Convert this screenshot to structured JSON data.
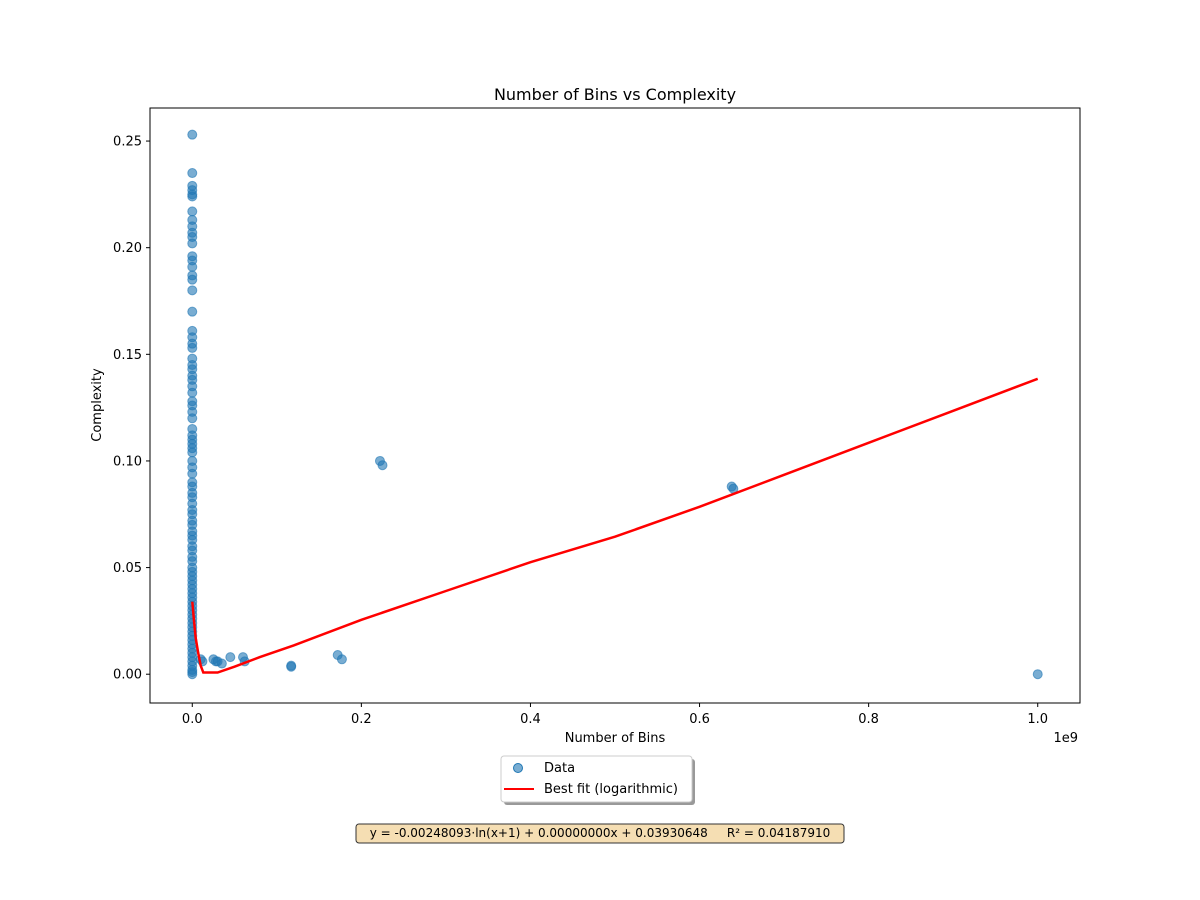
{
  "chart_data": {
    "type": "scatter",
    "title": "Number of Bins vs Complexity",
    "xlabel": "Number of Bins",
    "ylabel": "Complexity",
    "x_offset_label": "1e9",
    "x_scale": 1000000000,
    "xlim": [
      -0.05,
      1.05
    ],
    "ylim": [
      -0.0135,
      0.2655
    ],
    "x_ticks": [
      {
        "value": 0.0,
        "label": "0.0"
      },
      {
        "value": 0.2,
        "label": "0.2"
      },
      {
        "value": 0.4,
        "label": "0.4"
      },
      {
        "value": 0.6,
        "label": "0.6"
      },
      {
        "value": 0.8,
        "label": "0.8"
      },
      {
        "value": 1.0,
        "label": "1.0"
      }
    ],
    "y_ticks": [
      {
        "value": 0.0,
        "label": "0.00"
      },
      {
        "value": 0.05,
        "label": "0.05"
      },
      {
        "value": 0.1,
        "label": "0.10"
      },
      {
        "value": 0.15,
        "label": "0.15"
      },
      {
        "value": 0.2,
        "label": "0.20"
      },
      {
        "value": 0.25,
        "label": "0.25"
      }
    ],
    "grid": false,
    "legend_position": "bottom-center",
    "series": [
      {
        "name": "Data",
        "kind": "scatter",
        "color": "#1f77b4",
        "points": [
          [
            0.0,
            0.253
          ],
          [
            0.0,
            0.235
          ],
          [
            0.0,
            0.229
          ],
          [
            0.0,
            0.227
          ],
          [
            0.0,
            0.225
          ],
          [
            0.0,
            0.224
          ],
          [
            0.0,
            0.217
          ],
          [
            0.0,
            0.213
          ],
          [
            0.0,
            0.21
          ],
          [
            0.0,
            0.207
          ],
          [
            0.0,
            0.205
          ],
          [
            0.0,
            0.202
          ],
          [
            0.0,
            0.196
          ],
          [
            0.0,
            0.194
          ],
          [
            0.0,
            0.191
          ],
          [
            0.0,
            0.187
          ],
          [
            0.0,
            0.185
          ],
          [
            0.0,
            0.18
          ],
          [
            0.0,
            0.17
          ],
          [
            0.0,
            0.161
          ],
          [
            0.0,
            0.158
          ],
          [
            0.0,
            0.155
          ],
          [
            0.0,
            0.153
          ],
          [
            0.0,
            0.148
          ],
          [
            0.0,
            0.145
          ],
          [
            0.0,
            0.143
          ],
          [
            0.0,
            0.14
          ],
          [
            0.0,
            0.138
          ],
          [
            0.0,
            0.135
          ],
          [
            0.0,
            0.132
          ],
          [
            0.0,
            0.128
          ],
          [
            0.0,
            0.126
          ],
          [
            0.0,
            0.123
          ],
          [
            0.0,
            0.12
          ],
          [
            0.0,
            0.115
          ],
          [
            0.0,
            0.112
          ],
          [
            0.0,
            0.11
          ],
          [
            0.0,
            0.108
          ],
          [
            0.0,
            0.106
          ],
          [
            0.0,
            0.104
          ],
          [
            0.0,
            0.1
          ],
          [
            0.0,
            0.097
          ],
          [
            0.0,
            0.094
          ],
          [
            0.0,
            0.09
          ],
          [
            0.0,
            0.088
          ],
          [
            0.0,
            0.085
          ],
          [
            0.0,
            0.083
          ],
          [
            0.0,
            0.08
          ],
          [
            0.0,
            0.077
          ],
          [
            0.0,
            0.075
          ],
          [
            0.0,
            0.072
          ],
          [
            0.0,
            0.07
          ],
          [
            0.0,
            0.067
          ],
          [
            0.0,
            0.065
          ],
          [
            0.0,
            0.063
          ],
          [
            0.0,
            0.06
          ],
          [
            0.0,
            0.058
          ],
          [
            0.0,
            0.055
          ],
          [
            0.0,
            0.053
          ],
          [
            0.0,
            0.05
          ],
          [
            0.0,
            0.048
          ],
          [
            0.0,
            0.046
          ],
          [
            0.0,
            0.044
          ],
          [
            0.0,
            0.042
          ],
          [
            0.0,
            0.04
          ],
          [
            0.0,
            0.038
          ],
          [
            0.0,
            0.036
          ],
          [
            0.0,
            0.034
          ],
          [
            0.0,
            0.032
          ],
          [
            0.0,
            0.03
          ],
          [
            0.0,
            0.028
          ],
          [
            0.0,
            0.026
          ],
          [
            0.0,
            0.024
          ],
          [
            0.0,
            0.022
          ],
          [
            0.0,
            0.02
          ],
          [
            0.0,
            0.018
          ],
          [
            0.0,
            0.016
          ],
          [
            0.0,
            0.014
          ],
          [
            0.0,
            0.012
          ],
          [
            0.0,
            0.01
          ],
          [
            0.0,
            0.008
          ],
          [
            0.0,
            0.006
          ],
          [
            0.0,
            0.004
          ],
          [
            0.0,
            0.002
          ],
          [
            0.0,
            0.001
          ],
          [
            0.0,
            0.0
          ],
          [
            0.01,
            0.007
          ],
          [
            0.012,
            0.006
          ],
          [
            0.025,
            0.007
          ],
          [
            0.028,
            0.006
          ],
          [
            0.03,
            0.006
          ],
          [
            0.035,
            0.005
          ],
          [
            0.045,
            0.008
          ],
          [
            0.06,
            0.008
          ],
          [
            0.062,
            0.006
          ],
          [
            0.117,
            0.004
          ],
          [
            0.117,
            0.0035
          ],
          [
            0.172,
            0.009
          ],
          [
            0.177,
            0.007
          ],
          [
            0.222,
            0.1
          ],
          [
            0.225,
            0.098
          ],
          [
            0.638,
            0.088
          ],
          [
            0.64,
            0.087
          ],
          [
            1.0,
            0.0
          ]
        ]
      },
      {
        "name": "Best fit (logarithmic)",
        "kind": "line",
        "color": "#ff0000",
        "points": [
          [
            0.0,
            0.034
          ],
          [
            0.002,
            0.025
          ],
          [
            0.004,
            0.017
          ],
          [
            0.007,
            0.01
          ],
          [
            0.01,
            0.004
          ],
          [
            0.013,
            0.0008
          ],
          [
            0.03,
            0.0008
          ],
          [
            0.05,
            0.0035
          ],
          [
            0.08,
            0.008
          ],
          [
            0.12,
            0.0135
          ],
          [
            0.2,
            0.0255
          ],
          [
            0.3,
            0.039
          ],
          [
            0.4,
            0.0525
          ],
          [
            0.5,
            0.0645
          ],
          [
            0.6,
            0.0785
          ],
          [
            0.7,
            0.0935
          ],
          [
            0.8,
            0.1085
          ],
          [
            0.9,
            0.1235
          ],
          [
            1.0,
            0.1385
          ]
        ]
      }
    ],
    "annotation": "y = -0.00248093·ln(x+1) + 0.00000000x + 0.03930648     R² = 0.04187910",
    "colors": {
      "annotation_bg": "#f5deb3",
      "annotation_border": "#333333",
      "axes_edge": "#000000"
    }
  }
}
